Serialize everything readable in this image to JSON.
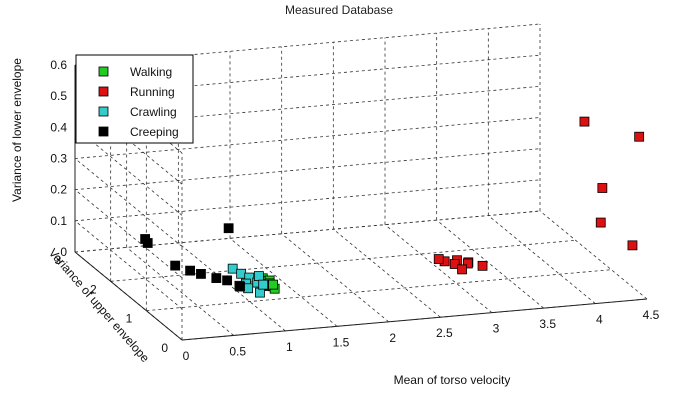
{
  "chart_data": {
    "type": "scatter",
    "title": "Measured Database",
    "xlabel": "Mean of torso velocity",
    "ylabel": "Variance of upper envelope",
    "zlabel": "Variance of lower envelope",
    "xlim": [
      0,
      4.5
    ],
    "ylim": [
      0,
      3
    ],
    "zlim": [
      0,
      0.6
    ],
    "xticks": [
      "0",
      "0.5",
      "1",
      "1.5",
      "2",
      "2.5",
      "3",
      "3.5",
      "4",
      "4.5"
    ],
    "yticks": [
      "0",
      "1",
      "2",
      "3"
    ],
    "zticks": [
      "0",
      "0.1",
      "0.2",
      "0.3",
      "0.4",
      "0.5",
      "0.6"
    ],
    "grid": true,
    "legend_position": "top-left",
    "series": [
      {
        "name": "Walking",
        "color": "#22cc22",
        "points": [
          [
            1.03,
            0.72,
            0.1
          ],
          [
            1.07,
            0.72,
            0.09
          ],
          [
            1.1,
            0.73,
            0.09
          ],
          [
            1.02,
            0.64,
            0.09
          ],
          [
            1.07,
            0.64,
            0.09
          ],
          [
            1.1,
            0.64,
            0.08
          ],
          [
            1.04,
            0.56,
            0.09
          ],
          [
            1.09,
            0.56,
            0.08
          ],
          [
            1.12,
            0.69,
            0.08
          ],
          [
            1.0,
            0.6,
            0.09
          ]
        ]
      },
      {
        "name": "Running",
        "color": "#dd1111",
        "points": [
          [
            2.8,
            0.75,
            0.1
          ],
          [
            2.92,
            0.75,
            0.1
          ],
          [
            3.03,
            0.75,
            0.09
          ],
          [
            2.74,
            0.74,
            0.11
          ],
          [
            2.86,
            0.64,
            0.1
          ],
          [
            2.98,
            0.62,
            0.1
          ],
          [
            2.9,
            0.55,
            0.09
          ],
          [
            3.15,
            0.7,
            0.08
          ],
          [
            4.05,
            0.45,
            0.54
          ],
          [
            4.5,
            0.22,
            0.5
          ],
          [
            4.13,
            0.18,
            0.35
          ],
          [
            4.08,
            0.08,
            0.25
          ],
          [
            4.38,
            0.06,
            0.17
          ]
        ]
      },
      {
        "name": "Crawling",
        "color": "#33cccc",
        "points": [
          [
            0.87,
            1.1,
            0.1
          ],
          [
            0.89,
            0.92,
            0.1
          ],
          [
            0.92,
            0.78,
            0.1
          ],
          [
            0.86,
            0.7,
            0.09
          ],
          [
            0.97,
            0.7,
            0.09
          ],
          [
            1.02,
            0.8,
            0.1
          ],
          [
            0.83,
            0.55,
            0.09
          ],
          [
            0.92,
            0.48,
            0.08
          ],
          [
            1.0,
            0.62,
            0.09
          ],
          [
            0.78,
            0.65,
            0.09
          ]
        ]
      },
      {
        "name": "Creeping",
        "color": "#000000",
        "points": [
          [
            0.9,
            1.3,
            0.21
          ],
          [
            0.4,
            2.12,
            0.1
          ],
          [
            0.42,
            2.25,
            0.1
          ],
          [
            0.4,
            1.35,
            0.1
          ],
          [
            0.51,
            1.25,
            0.09
          ],
          [
            0.57,
            1.12,
            0.09
          ],
          [
            0.66,
            0.95,
            0.09
          ],
          [
            0.73,
            0.85,
            0.09
          ],
          [
            0.81,
            0.72,
            0.08
          ]
        ]
      }
    ]
  }
}
